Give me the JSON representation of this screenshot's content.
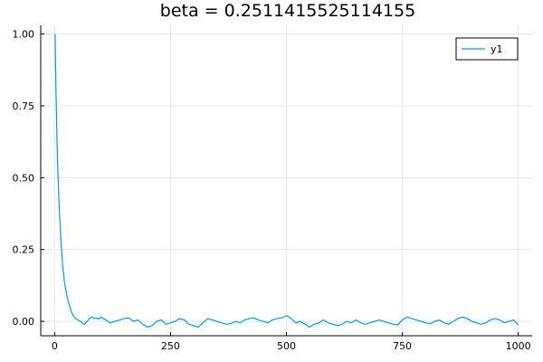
{
  "chart_data": {
    "type": "line",
    "title": "beta = 0.2511415525114155",
    "xlabel": "",
    "ylabel": "",
    "xlim": [
      -30,
      1030
    ],
    "ylim": [
      -0.05,
      1.03
    ],
    "x_ticks": [
      0,
      250,
      500,
      750,
      1000
    ],
    "x_tick_labels": [
      "0",
      "250",
      "500",
      "750",
      "1000"
    ],
    "y_ticks": [
      0.0,
      0.25,
      0.5,
      0.75,
      1.0
    ],
    "y_tick_labels": [
      "0.00",
      "0.25",
      "0.50",
      "0.75",
      "1.00"
    ],
    "grid": true,
    "legend": {
      "position": "top-right",
      "entries": [
        "y1"
      ]
    },
    "colors": {
      "series": "#009af9",
      "grid": "#e6e6e6",
      "axis": "#000000"
    },
    "series": [
      {
        "name": "y1",
        "x": [
          1,
          3,
          5,
          7,
          9,
          11,
          13,
          15,
          17,
          19,
          21,
          23,
          25,
          27,
          30,
          33,
          36,
          40,
          45,
          50,
          55,
          60,
          65,
          70,
          75,
          80,
          85,
          90,
          95,
          100,
          110,
          120,
          130,
          140,
          150,
          160,
          170,
          180,
          190,
          200,
          210,
          220,
          230,
          240,
          250,
          260,
          270,
          280,
          290,
          300,
          310,
          320,
          330,
          340,
          350,
          360,
          370,
          380,
          390,
          400,
          410,
          420,
          430,
          440,
          450,
          460,
          470,
          480,
          490,
          500,
          510,
          520,
          530,
          540,
          550,
          560,
          570,
          580,
          590,
          600,
          610,
          620,
          630,
          640,
          650,
          660,
          670,
          680,
          690,
          700,
          710,
          720,
          730,
          740,
          750,
          760,
          770,
          780,
          790,
          800,
          810,
          820,
          830,
          840,
          850,
          860,
          870,
          880,
          890,
          900,
          910,
          920,
          930,
          940,
          950,
          960,
          970,
          980,
          990,
          1000
        ],
        "y": [
          1.0,
          0.8,
          0.64,
          0.52,
          0.43,
          0.36,
          0.3,
          0.25,
          0.2,
          0.17,
          0.14,
          0.12,
          0.1,
          0.085,
          0.065,
          0.05,
          0.035,
          0.02,
          0.01,
          0.005,
          0.0,
          -0.005,
          -0.01,
          0.0,
          0.01,
          0.015,
          0.01,
          0.012,
          0.008,
          0.015,
          0.005,
          -0.005,
          0.0,
          0.005,
          0.01,
          0.012,
          0.0,
          0.005,
          -0.01,
          -0.02,
          -0.015,
          0.0,
          0.005,
          -0.01,
          -0.005,
          0.0,
          0.01,
          0.005,
          -0.01,
          -0.015,
          -0.02,
          -0.005,
          0.01,
          0.005,
          0.0,
          -0.005,
          -0.01,
          -0.008,
          0.0,
          -0.005,
          0.005,
          0.01,
          0.012,
          0.005,
          0.0,
          -0.005,
          0.005,
          0.01,
          0.012,
          0.02,
          0.01,
          -0.005,
          0.0,
          -0.01,
          -0.02,
          -0.01,
          -0.005,
          0.005,
          -0.005,
          -0.01,
          -0.015,
          -0.01,
          0.0,
          -0.005,
          0.005,
          -0.005,
          -0.01,
          -0.005,
          0.0,
          0.005,
          0.0,
          -0.005,
          -0.01,
          -0.012,
          0.005,
          0.015,
          0.01,
          0.005,
          0.0,
          -0.005,
          -0.008,
          0.0,
          0.005,
          -0.005,
          -0.01,
          0.0,
          0.01,
          0.015,
          0.01,
          0.0,
          -0.005,
          -0.01,
          -0.005,
          0.005,
          0.01,
          0.005,
          -0.005,
          0.0,
          0.005,
          -0.012
        ]
      }
    ]
  }
}
